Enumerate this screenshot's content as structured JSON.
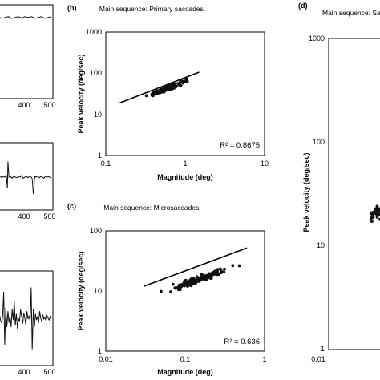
{
  "figure": {
    "panel_labels": {
      "b": "(b)",
      "c": "(c)",
      "d": "(d)"
    }
  },
  "chart_data": [
    {
      "id": "left-top",
      "type": "line",
      "x_ticks": [
        "400",
        "500"
      ],
      "series": [
        {
          "x": [
            300,
            312,
            325,
            338,
            350,
            362,
            375,
            385,
            388,
            392,
            400,
            412,
            425,
            438,
            450,
            462,
            475,
            488,
            500
          ],
          "y": [
            0.9,
            0.88,
            0.89,
            0.9,
            0.88,
            0.89,
            0.9,
            0.89,
            0.88,
            0.89,
            0.9,
            0.89,
            0.9,
            0.88,
            0.89,
            0.9,
            0.88,
            0.89,
            0.9
          ]
        }
      ]
    },
    {
      "id": "left-middle",
      "type": "line",
      "x_ticks": [
        "400",
        "500"
      ],
      "series": [
        {
          "x": [
            300,
            306,
            312,
            318,
            324,
            330,
            334,
            336,
            340,
            346,
            352,
            358,
            364,
            370,
            376,
            382,
            388,
            394,
            400,
            406,
            412,
            418,
            424,
            428,
            432,
            434,
            436,
            438,
            442,
            448,
            454,
            460,
            466,
            472,
            478,
            484,
            490,
            496,
            500
          ],
          "y": [
            0.5,
            0.52,
            0.49,
            0.51,
            0.5,
            0.53,
            0.3,
            0.78,
            0.5,
            0.51,
            0.48,
            0.52,
            0.5,
            0.49,
            0.51,
            0.5,
            0.53,
            0.48,
            0.5,
            0.51,
            0.49,
            0.52,
            0.5,
            0.47,
            0.2,
            0.25,
            0.45,
            0.51,
            0.5,
            0.52,
            0.49,
            0.51,
            0.5,
            0.48,
            0.52,
            0.5,
            0.51,
            0.49,
            0.5
          ]
        }
      ]
    },
    {
      "id": "left-bottom",
      "type": "line",
      "x_ticks": [
        "400",
        "500"
      ],
      "series": [
        {
          "x": [
            300,
            304,
            308,
            312,
            316,
            320,
            324,
            328,
            332,
            336,
            340,
            344,
            348,
            352,
            356,
            360,
            364,
            368,
            372,
            376,
            380,
            384,
            388,
            392,
            396,
            400,
            404,
            408,
            412,
            416,
            420,
            424,
            428,
            432,
            436,
            440,
            444,
            448,
            452,
            456,
            460,
            464,
            468,
            472,
            476,
            480,
            484,
            488,
            492,
            496,
            500
          ],
          "y": [
            0.5,
            0.55,
            0.48,
            0.45,
            0.52,
            0.8,
            0.2,
            0.62,
            0.4,
            0.58,
            0.45,
            0.52,
            0.4,
            0.6,
            0.48,
            0.7,
            0.42,
            0.55,
            0.38,
            0.5,
            0.46,
            0.6,
            0.52,
            0.44,
            0.56,
            0.5,
            0.42,
            0.58,
            0.49,
            0.53,
            0.47,
            0.85,
            0.15,
            0.6,
            0.4,
            0.55,
            0.48,
            0.52,
            0.45,
            0.58,
            0.5,
            0.46,
            0.54,
            0.49,
            0.51,
            0.47,
            0.53,
            0.5,
            0.48,
            0.52,
            0.5
          ]
        }
      ]
    },
    {
      "id": "b",
      "type": "scatter",
      "title": "Main sequence: Primary saccades.",
      "xlabel": "Magnitude (deg)",
      "ylabel": "Peak velocity (deg/sec)",
      "xscale": "log",
      "yscale": "log",
      "xlim": [
        0.1,
        10
      ],
      "ylim": [
        1,
        1000
      ],
      "x_ticks": [
        "0.1",
        "1",
        "10"
      ],
      "y_ticks": [
        "1",
        "10",
        "100",
        "1000"
      ],
      "annotation": "R² = 0.8675",
      "fit": {
        "x": [
          0.15,
          1.5
        ],
        "y": [
          19,
          106
        ]
      },
      "n_points": 160,
      "x_center": 0.58,
      "x_spread": 0.38,
      "fit_slope": 0.745,
      "fit_intercept": 1.8,
      "noise": 0.09
    },
    {
      "id": "c",
      "type": "scatter",
      "title": "Main sequence: Microsaccades.",
      "xlabel": "Magnitude (deg)",
      "ylabel": "Peak velocity (deg/sec)",
      "xscale": "log",
      "yscale": "log",
      "xlim": [
        0.01,
        1
      ],
      "ylim": [
        1,
        100
      ],
      "x_ticks": [
        "0.01",
        "0.1",
        "1"
      ],
      "y_ticks": [
        "1",
        "10",
        "100"
      ],
      "annotation": "R² = 0.636",
      "fit": {
        "x": [
          0.03,
          0.6
        ],
        "y": [
          12,
          52
        ]
      },
      "n_points": 150,
      "x_center": 0.15,
      "x_spread": 0.6,
      "fit_slope": 0.49,
      "fit_intercept": 1.6,
      "noise": 0.11
    },
    {
      "id": "d",
      "type": "scatter",
      "title": "Main sequence: Sa",
      "ylabel": "Peak velocity (deg/sec)",
      "xscale": "log",
      "yscale": "log",
      "xlim": [
        0.01,
        1
      ],
      "ylim": [
        1,
        1000
      ],
      "x_ticks": [
        "0.01"
      ],
      "y_ticks": [
        "1",
        "10",
        "100",
        "1000"
      ],
      "n_points": 34,
      "x_center": 0.08,
      "x_spread": 0.3,
      "fit_slope": 0.5,
      "fit_intercept": 1.85,
      "noise": 0.12
    }
  ]
}
